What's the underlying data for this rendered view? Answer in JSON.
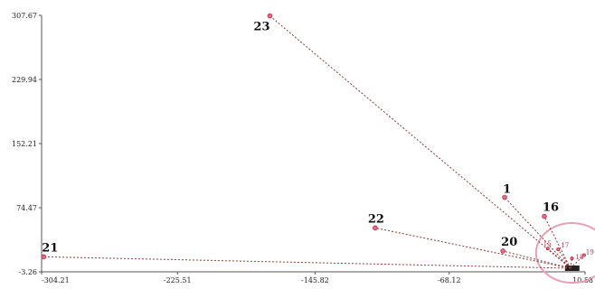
{
  "chart_data": {
    "type": "scatter",
    "title": "",
    "xlabel": "",
    "ylabel": "",
    "xlim": [
      -304.21,
      10.58
    ],
    "ylim": [
      -3.26,
      307.67
    ],
    "x_ticks": [
      "-304.21",
      "-225.51",
      "-145.82",
      "-68.12",
      "10.58"
    ],
    "y_ticks": [
      "307.67",
      "229.94",
      "152.21",
      "74.47",
      "-3.26"
    ],
    "x_tick_values": [
      -304.21,
      -225.51,
      -145.82,
      -68.12,
      10.58
    ],
    "y_tick_values": [
      307.67,
      229.94,
      152.21,
      74.47,
      -3.26
    ],
    "origin": {
      "x": 0,
      "y": 0
    },
    "points": [
      {
        "label": "23",
        "x": -172.0,
        "y": 307.0,
        "size": "large"
      },
      {
        "label": "1",
        "x": -36.0,
        "y": 87.0,
        "size": "large"
      },
      {
        "label": "16",
        "x": -13.0,
        "y": 64.0,
        "size": "large"
      },
      {
        "label": "22",
        "x": -111.0,
        "y": 50.0,
        "size": "large"
      },
      {
        "label": "20",
        "x": -37.0,
        "y": 22.0,
        "size": "large"
      },
      {
        "label": "21",
        "x": -303.0,
        "y": 15.0,
        "size": "large"
      },
      {
        "label": "15",
        "x": -11.0,
        "y": 25.0,
        "size": "small"
      },
      {
        "label": "17",
        "x": -5.0,
        "y": 24.0,
        "size": "small"
      },
      {
        "label": "18",
        "x": 3.0,
        "y": 13.0,
        "size": "small"
      },
      {
        "label": "19",
        "x": 10.0,
        "y": 17.0,
        "size": "small"
      }
    ],
    "grid": false,
    "legend": "none",
    "highlight_color": "#e8a0b6",
    "point_color": "#e46a7d"
  }
}
